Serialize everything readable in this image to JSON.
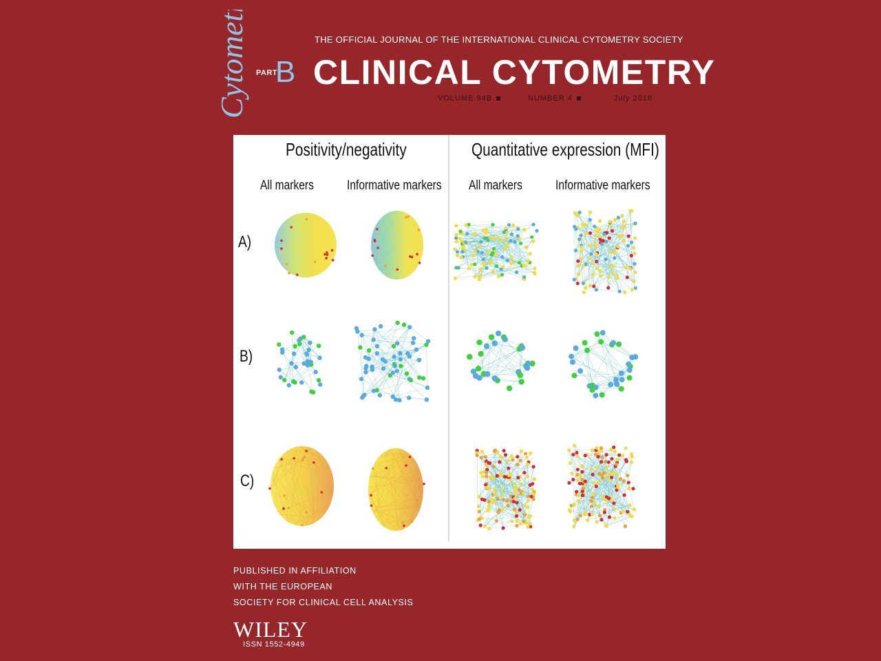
{
  "masthead": {
    "script_logo": "Cytometry",
    "part_label": "PART",
    "part_letter": "B",
    "tagline": "THE OFFICIAL JOURNAL OF THE INTERNATIONAL CLINICAL CYTOMETRY SOCIETY",
    "title": "CLINICAL CYTOMETRY",
    "volume": "VOLUME 94B",
    "number": "NUMBER 4",
    "date": "July 2018"
  },
  "figure": {
    "left_title": "Positivity/negativity",
    "right_title": "Quantitative expression (MFI)",
    "columns": [
      "All markers",
      "Informative markers",
      "All markers",
      "Informative markers"
    ],
    "rows": [
      "A)",
      "B)",
      "C)"
    ]
  },
  "footer": {
    "affiliation": [
      "PUBLISHED IN AFFILIATION",
      "WITH THE EUROPEAN",
      "SOCIETY FOR CLINICAL CELL ANALYSIS"
    ],
    "publisher": "WILEY",
    "issn": "ISSN 1552-4949"
  },
  "colors": {
    "background": "#96262a",
    "part_accent": "#8ec6ea",
    "node_yellow": "#f2dc3a",
    "node_blue": "#5aa9e0",
    "node_green": "#3fd13a",
    "node_red": "#d6283a",
    "node_orange": "#e8a23a"
  }
}
